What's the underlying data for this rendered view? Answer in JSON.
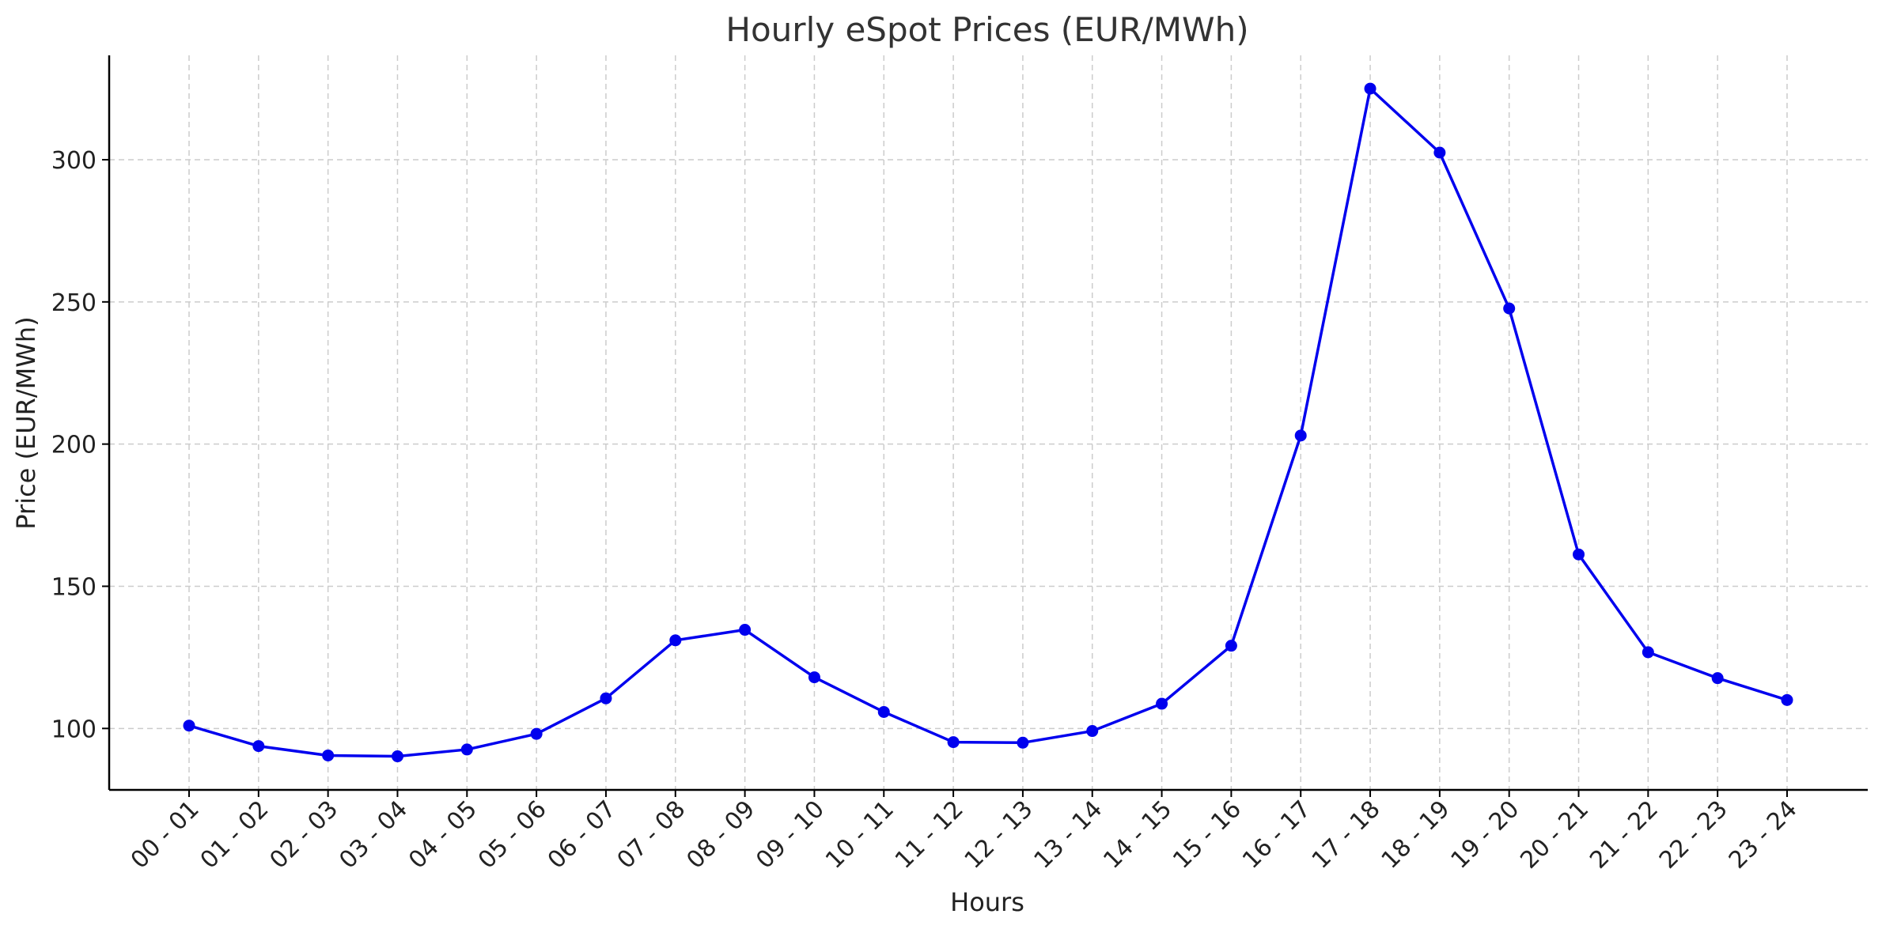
{
  "chart_data": {
    "type": "line",
    "title": "Hourly eSpot Prices (EUR/MWh)",
    "xlabel": "Hours",
    "ylabel": "Price (EUR/MWh)",
    "categories": [
      "00 - 01",
      "01 - 02",
      "02 - 03",
      "03 - 04",
      "04 - 05",
      "05 - 06",
      "06 - 07",
      "07 - 08",
      "08 - 09",
      "09 - 10",
      "10 - 11",
      "11 - 12",
      "12 - 13",
      "13 - 14",
      "14 - 15",
      "15 - 16",
      "16 - 17",
      "17 - 18",
      "18 - 19",
      "19 - 20",
      "20 - 21",
      "21 - 22",
      "22 - 23",
      "23 - 24"
    ],
    "series": [
      {
        "values": [
          101,
          93.8,
          90.5,
          90.2,
          92.6,
          98.1,
          110.6,
          131,
          134.7,
          118,
          105.8,
          95.2,
          95,
          99.1,
          108.7,
          129.1,
          203,
          325,
          302.5,
          247.7,
          161.2,
          126.8,
          117.7,
          110
        ],
        "color": "#0000ee"
      }
    ],
    "yticks": [
      100,
      150,
      200,
      250,
      300
    ],
    "ylim": [
      78.4,
      336.7
    ],
    "grid": true,
    "grid_style": "dashed",
    "marker": "circle",
    "line_color": "#0000ee"
  }
}
